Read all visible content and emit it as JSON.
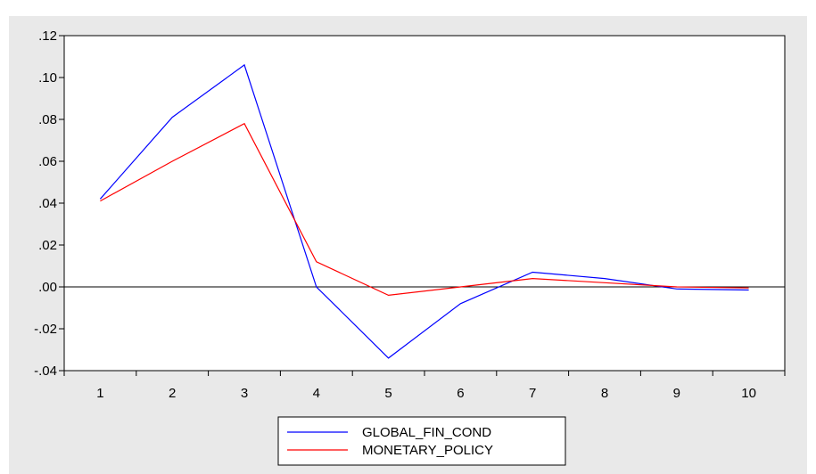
{
  "chart_data": {
    "type": "line",
    "title": "",
    "xlabel": "",
    "ylabel": "",
    "categories": [
      "1",
      "2",
      "3",
      "4",
      "5",
      "6",
      "7",
      "8",
      "9",
      "10"
    ],
    "ylim": [
      -0.04,
      0.12
    ],
    "yticks": [
      0.12,
      0.1,
      0.08,
      0.06,
      0.04,
      0.02,
      0.0,
      -0.02,
      -0.04
    ],
    "yticklabels": [
      ".12",
      ".10",
      ".08",
      ".06",
      ".04",
      ".02",
      ".00",
      "-.02",
      "-.04"
    ],
    "grid": false,
    "zero_line": true,
    "legend_position": "bottom-center",
    "series": [
      {
        "name": "GLOBAL_FIN_COND",
        "color": "#0000ff",
        "values": [
          0.042,
          0.081,
          0.106,
          0.0,
          -0.034,
          -0.008,
          0.007,
          0.004,
          -0.001,
          -0.0015
        ]
      },
      {
        "name": "MONETARY_POLICY",
        "color": "#ff0000",
        "values": [
          0.041,
          0.06,
          0.078,
          0.012,
          -0.004,
          0.0,
          0.004,
          0.002,
          0.0,
          -0.0005
        ]
      }
    ]
  }
}
